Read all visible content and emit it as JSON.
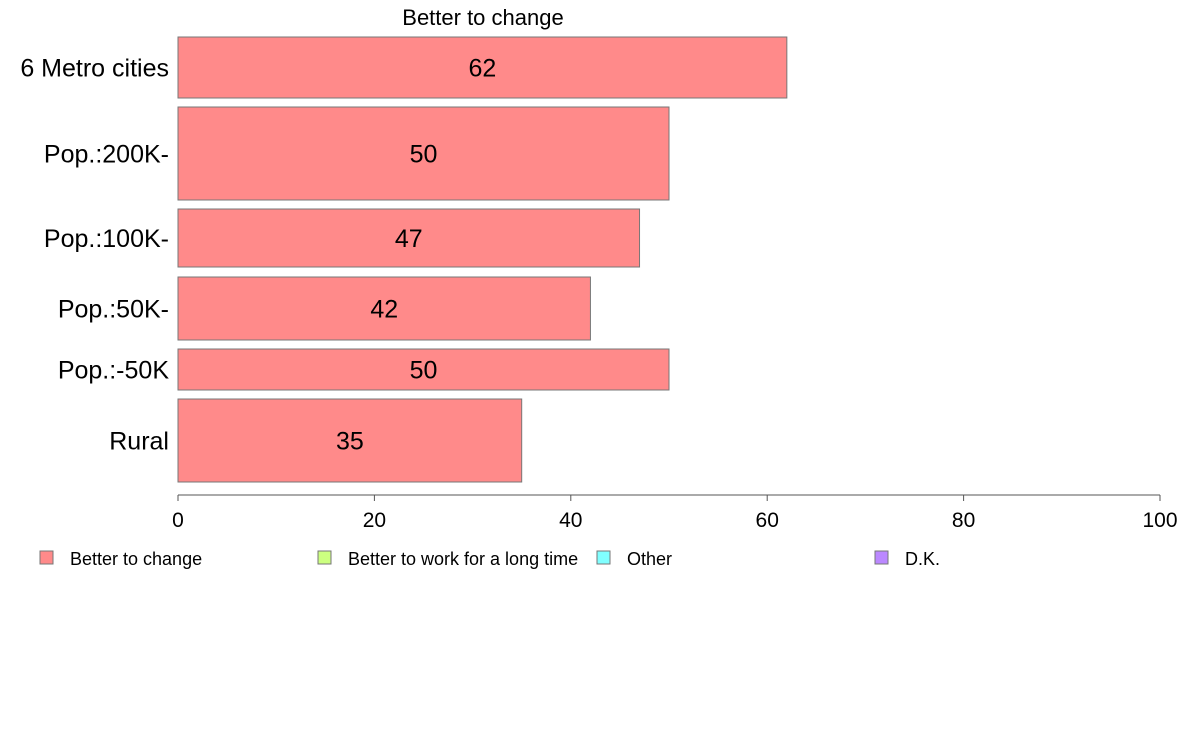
{
  "chart_data": {
    "type": "bar",
    "orientation": "horizontal",
    "title": "Better to change",
    "categories": [
      "6 Metro cities",
      "Pop.:200K-",
      "Pop.:100K-",
      "Pop.:50K-",
      "Pop.:-50K",
      "Rural"
    ],
    "series": [
      {
        "name": "Better to change",
        "color": "#ff8a8a",
        "values": [
          62,
          50,
          47,
          42,
          50,
          35
        ]
      }
    ],
    "data_labels": [
      "62",
      "50",
      "47",
      "42",
      "50",
      "35"
    ],
    "xlim": [
      0,
      100
    ],
    "xticks": [
      0,
      20,
      40,
      60,
      80,
      100
    ],
    "xtick_labels": [
      "0",
      "20",
      "40",
      "60",
      "80",
      "100"
    ],
    "grid": false,
    "legend_position": "bottom",
    "legend": [
      {
        "label": "Better to change",
        "color": "#ff8a8a"
      },
      {
        "label": "Better to work for a long time",
        "color": "#ccff80"
      },
      {
        "label": "Other",
        "color": "#80ffff"
      },
      {
        "label": "D.K.",
        "color": "#bb88ff"
      }
    ]
  }
}
